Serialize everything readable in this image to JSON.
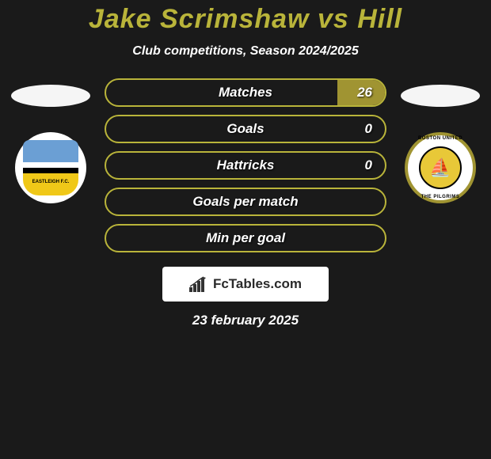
{
  "title": {
    "player1": "Jake Scrimshaw",
    "vs": "vs",
    "player2": "Hill"
  },
  "subtitle": "Club competitions, Season 2024/2025",
  "colors": {
    "accent": "#b9b43a",
    "fill": "#a09432",
    "background": "#1a1a1a",
    "text": "#ffffff"
  },
  "stats": [
    {
      "label": "Matches",
      "value_right": "26",
      "fill_right_pct": 17
    },
    {
      "label": "Goals",
      "value_right": "0",
      "fill_right_pct": 0
    },
    {
      "label": "Hattricks",
      "value_right": "0",
      "fill_right_pct": 0
    },
    {
      "label": "Goals per match",
      "value_right": "",
      "fill_right_pct": 0
    },
    {
      "label": "Min per goal",
      "value_right": "",
      "fill_right_pct": 0
    }
  ],
  "club_left": {
    "name": "Eastleigh FC",
    "badge_text": "EASTLEIGH F.C."
  },
  "club_right": {
    "name": "Boston United",
    "badge_text_top": "BOSTON UNITED",
    "badge_text_bottom": "THE PILGRIMS"
  },
  "branding": {
    "site_name": "FcTables.com"
  },
  "date": "23 february 2025"
}
